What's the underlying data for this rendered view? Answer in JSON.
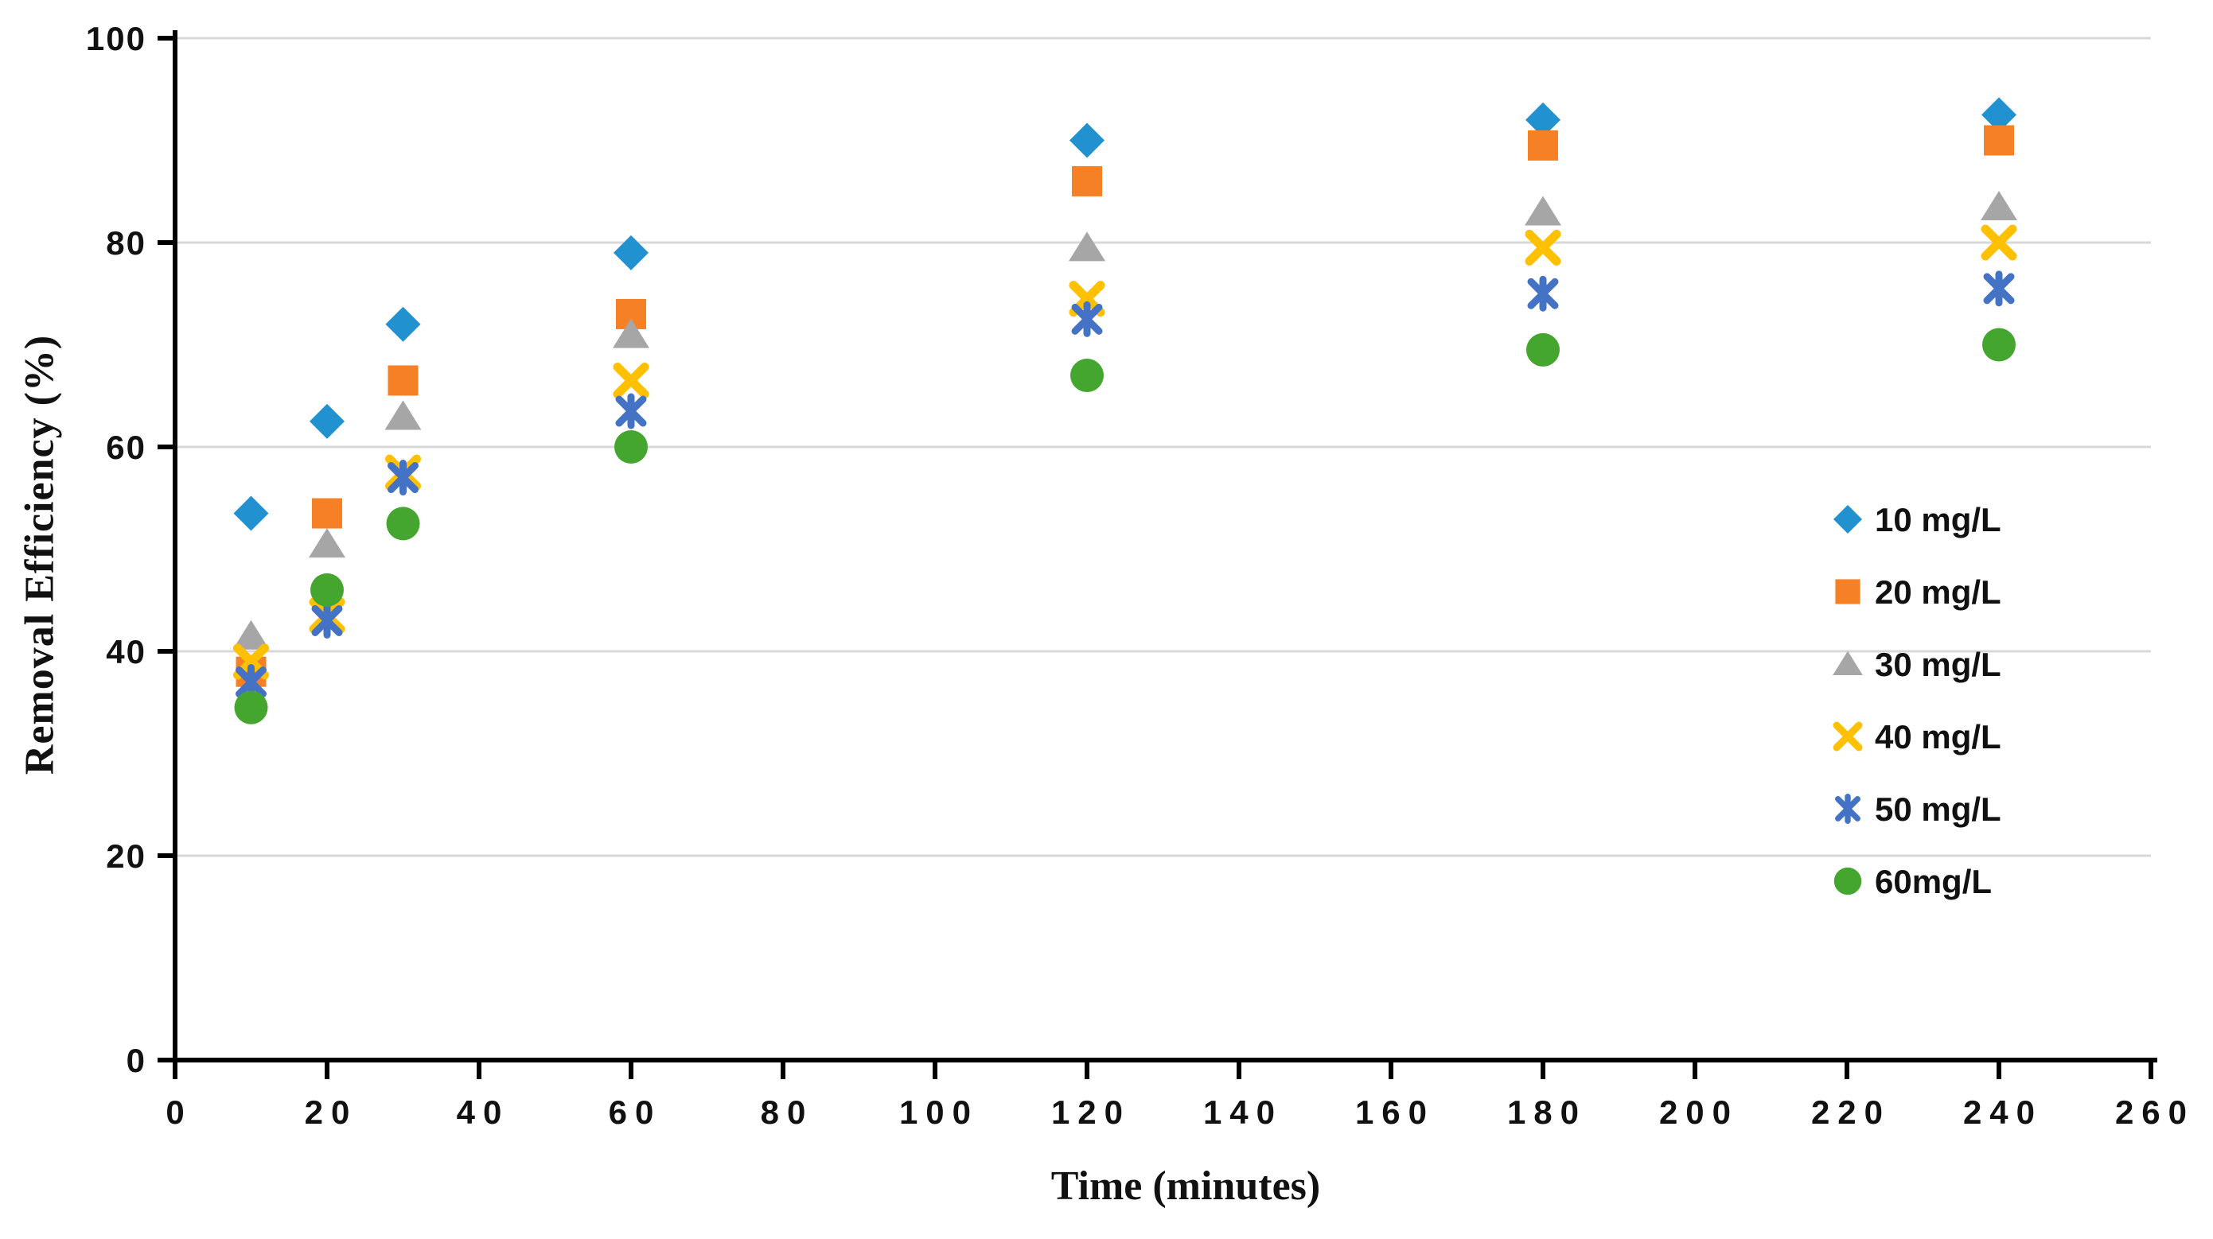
{
  "figure": {
    "background_color": "#ffffff"
  },
  "chart_data": {
    "type": "scatter",
    "title": "",
    "xlabel": "Time (minutes)",
    "ylabel": "Removal Efficiency (%)",
    "xlim": [
      0,
      260
    ],
    "xtick_step": 20,
    "ylim": [
      0,
      100
    ],
    "ytick_step": 20,
    "grid": "horizontal-only",
    "gridline_color": "#d8d8d8",
    "axis_color": "#000000",
    "legend_position": "inside-right",
    "x": [
      10,
      20,
      30,
      60,
      120,
      180,
      240
    ],
    "series": [
      {
        "name": "10 mg/L",
        "marker": "diamond",
        "color": "#2191d0",
        "values": [
          53.5,
          62.5,
          72,
          79,
          90,
          92,
          92.5
        ]
      },
      {
        "name": "20 mg/L",
        "marker": "square",
        "color": "#f58026",
        "values": [
          38,
          53.5,
          66.5,
          73,
          86,
          89.5,
          90
        ]
      },
      {
        "name": "30 mg/L",
        "marker": "triangle",
        "color": "#a6a6a6",
        "values": [
          41.5,
          50.5,
          63,
          71,
          79.5,
          83,
          83.5
        ]
      },
      {
        "name": "40 mg/L",
        "marker": "x",
        "color": "#ffc000",
        "values": [
          39,
          43.5,
          57.5,
          66.5,
          74.5,
          79.5,
          80
        ]
      },
      {
        "name": "50 mg/L",
        "marker": "star",
        "color": "#4472c4",
        "values": [
          37,
          43,
          57,
          63.5,
          72.5,
          75,
          75.5
        ]
      },
      {
        "name": "60mg/L",
        "marker": "circle",
        "color": "#45a62f",
        "values": [
          34.5,
          46,
          52.5,
          60,
          67,
          69.5,
          70
        ]
      }
    ]
  }
}
